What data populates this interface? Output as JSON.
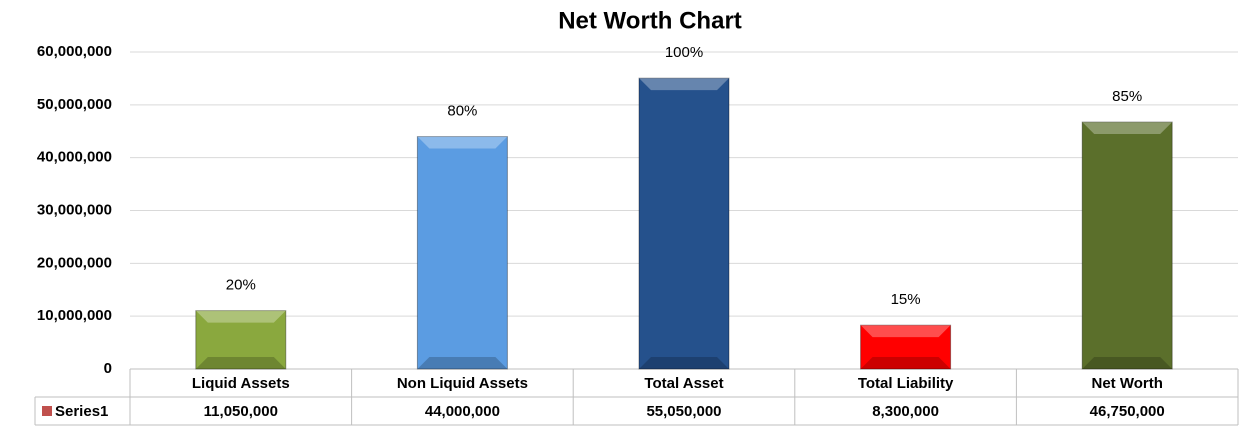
{
  "chart_data": {
    "type": "bar",
    "title": "Net Worth Chart",
    "categories": [
      "Liquid Assets",
      "Non Liquid Assets",
      "Total Asset",
      "Total Liability",
      "Net Worth"
    ],
    "series": [
      {
        "name": "Series1",
        "color": "#c0504d",
        "values": [
          11050000,
          44000000,
          55050000,
          8300000,
          46750000
        ],
        "value_labels": [
          "11,050,000",
          "44,000,000",
          "55,050,000",
          "8,300,000",
          "46,750,000"
        ],
        "data_labels": [
          "20%",
          "80%",
          "100%",
          "15%",
          "85%"
        ]
      }
    ],
    "colors": [
      "#8aa83e",
      "#5b9ce2",
      "#25518c",
      "#ff0000",
      "#5b6f2b"
    ],
    "ylim": [
      0,
      60000000
    ],
    "yticks": [
      0,
      {
        "value": 10000000,
        "label": "10,000,000"
      },
      {
        "value": 20000000,
        "label": "20,000,000"
      },
      {
        "value": 30000000,
        "label": "30,000,000"
      },
      {
        "value": 40000000,
        "label": "40,000,000"
      },
      {
        "value": 50000000,
        "label": "50,000,000"
      },
      {
        "value": 60000000,
        "label": "60,000,000"
      }
    ],
    "grid": true
  }
}
